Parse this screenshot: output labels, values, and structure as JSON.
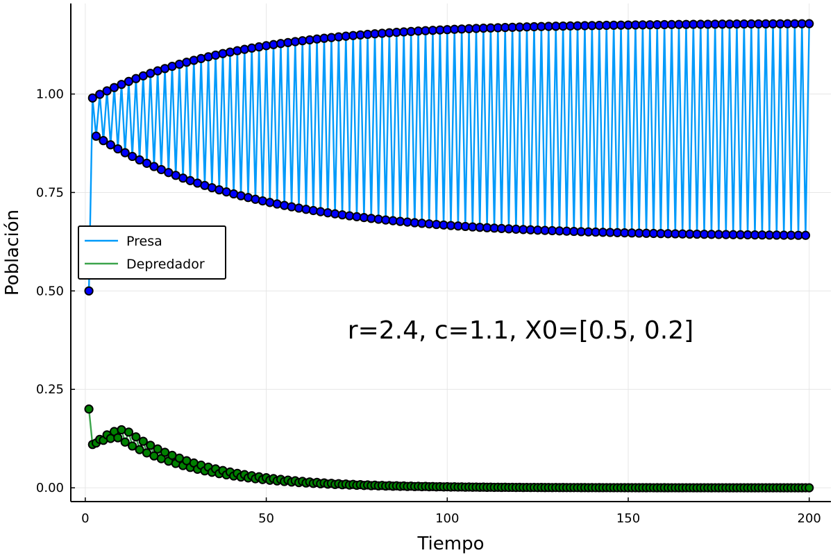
{
  "chart_data": {
    "type": "line",
    "title": "",
    "xlabel": "Tiempo",
    "ylabel": "Población",
    "xlim": [
      -4,
      206
    ],
    "ylim": [
      -0.035,
      1.23
    ],
    "x_ticks": [
      0,
      50,
      100,
      150,
      200
    ],
    "x_tick_labels": [
      "0",
      "50",
      "100",
      "150",
      "200"
    ],
    "y_ticks": [
      0,
      0.25,
      0.5,
      0.75,
      1.0
    ],
    "y_tick_labels": [
      "0.00",
      "0.25",
      "0.50",
      "0.75",
      "1.00"
    ],
    "grid": true,
    "legend_position": "center-left",
    "annotation": "r=2.4, c=1.1, X0=[0.5, 0.2]",
    "x": {
      "start": 1,
      "end": 200,
      "step": 1
    },
    "series": [
      {
        "name": "Presa",
        "color": "#009AFA",
        "marker_color": "#0000FF",
        "description_of_values": "alternating 2-cycle: odd t on lower branch, even t on upper branch",
        "initial": 0.5,
        "upper_branch": {
          "start": 0.99,
          "limit": 1.18,
          "rate": 0.05
        },
        "lower_branch": {
          "start": 0.893,
          "limit": 0.638,
          "rate": 0.045
        }
      },
      {
        "name": "Depredador",
        "color": "#3BA44B",
        "marker_color": "#008000",
        "description_of_values": "alternating 2-cycle decaying to zero",
        "initial": 0.2,
        "second": 0.11,
        "lower_branch": {
          "peak": 0.127,
          "peak_t": 9
        },
        "upper_branch": {
          "peak": 0.148,
          "peak_t": 11
        },
        "decay_rate": 0.045
      }
    ]
  },
  "colors": {
    "grid": "#e6e6e6",
    "axis": "#000000",
    "marker_edge": "#000000"
  }
}
